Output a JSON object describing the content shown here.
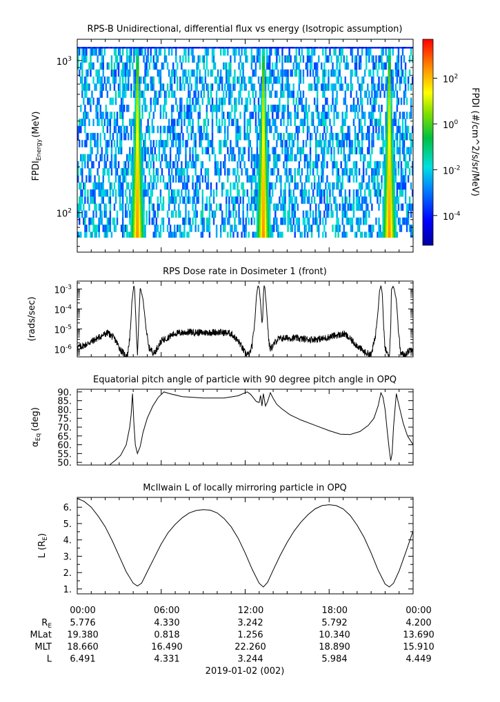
{
  "chart_data": [
    {
      "type": "heatmap",
      "title": "RPS-B  Unidirectional, differential flux vs energy (Isotropic assumption)",
      "ylabel": "FPDI",
      "ylabel_sub": "Energy",
      "ylabel_unit": "(MeV)",
      "y_scale": "log",
      "ylim": [
        55,
        1380
      ],
      "y_ticks": [
        {
          "value": 100,
          "label": "10",
          "exp": "2"
        },
        {
          "value": 1000,
          "label": "10",
          "exp": "3"
        }
      ],
      "x_hours": [
        0,
        24
      ],
      "energy_bands_mev": [
        58,
        64,
        71,
        79,
        88,
        98,
        109,
        121,
        135,
        150,
        167,
        186,
        207,
        230,
        256,
        285,
        317,
        353,
        393,
        437,
        486,
        541,
        602,
        670,
        745,
        829,
        922,
        1026,
        1141,
        1270
      ],
      "flux_peaks_hours": [
        4.3,
        13.3,
        22.3
      ],
      "colorbar": {
        "label": "FPDI (#/cm^2/s/sr/MeV)",
        "log_range": [
          -5.3,
          3.7
        ],
        "ticks": [
          {
            "label": "10",
            "exp": "2",
            "log": 2
          },
          {
            "label": "10",
            "exp": "0",
            "log": 0
          },
          {
            "label": "10",
            "exp": "-2",
            "log": -2
          },
          {
            "label": "10",
            "exp": "-4",
            "log": -4
          }
        ]
      }
    },
    {
      "type": "line",
      "title": "RPS  Dose rate in Dosimeter 1 (front)",
      "ylabel": "(rads/sec)",
      "y_scale": "log",
      "ylim": [
        4e-07,
        0.0025
      ],
      "y_ticks": [
        {
          "value": 0.001,
          "label": "10",
          "exp": "-3"
        },
        {
          "value": 0.0001,
          "label": "10",
          "exp": "-4"
        },
        {
          "value": 1e-05,
          "label": "10",
          "exp": "-5"
        },
        {
          "value": 1e-06,
          "label": "10",
          "exp": "-6"
        }
      ],
      "series": [
        {
          "x": [
            0,
            0.5,
            1,
            1.6,
            2.2,
            2.7,
            3.1,
            3.4,
            3.6,
            3.8,
            3.9,
            4.0,
            4.05,
            4.1,
            4.2,
            4.3,
            4.35,
            4.4,
            4.5,
            4.7,
            4.9,
            5.1,
            5.5,
            6,
            7,
            8,
            9,
            10,
            11,
            11.6,
            12,
            12.3,
            12.5,
            12.7,
            12.8,
            12.9,
            13.0,
            13.1,
            13.2,
            13.25,
            13.3,
            13.35,
            13.4,
            13.5,
            13.6,
            13.7,
            13.8,
            14.0,
            14.3,
            14.8,
            15.5,
            16.5,
            17.5,
            18.3,
            19.1,
            19.8,
            20.5,
            21.0,
            21.3,
            21.5,
            21.6,
            21.7,
            21.8,
            21.9,
            22.0,
            22.2,
            22.3,
            22.4,
            22.45,
            22.6,
            22.8,
            22.95,
            23.1,
            23.4,
            23.7,
            24
          ],
          "values": [
            1.2e-06,
            1.5e-06,
            2.3e-06,
            4e-06,
            6.5e-06,
            3e-06,
            9e-07,
            5e-07,
            5e-07,
            8e-06,
            0.0002,
            0.0009,
            0.0015,
            0.0009,
            2e-05,
            4e-07,
            4e-06,
            3e-05,
            0.0012,
            0.0003,
            1.5e-05,
            1.2e-06,
            6e-07,
            2.5e-06,
            6e-06,
            7e-06,
            6.5e-06,
            7e-06,
            6e-06,
            2e-06,
            6e-07,
            5e-07,
            1.5e-06,
            3e-05,
            0.0004,
            0.0014,
            0.0012,
            0.0002,
            2e-05,
            3e-05,
            0.0005,
            0.0015,
            0.0013,
            0.0002,
            2e-05,
            2e-06,
            1e-06,
            1.5e-06,
            3e-06,
            3.5e-06,
            3.5e-06,
            3e-06,
            3.2e-06,
            4.5e-06,
            5.5e-06,
            2e-06,
            7e-07,
            5e-07,
            4e-06,
            9e-05,
            0.0008,
            0.0015,
            0.0006,
            1e-05,
            1e-06,
            5e-07,
            4e-07,
            1e-05,
            0.001,
            0.0014,
            0.0003,
            1e-05,
            6e-07,
            5e-07,
            8e-07,
            1.2e-06
          ]
        }
      ]
    },
    {
      "type": "line",
      "title": "Equatorial pitch angle of particle with 90 degree pitch angle in OPQ",
      "ylabel": "α",
      "ylabel_sub": "Eq",
      "ylabel_unit": "(deg)",
      "ylim": [
        48.5,
        91.5
      ],
      "y_ticks": [
        90,
        85,
        80,
        75,
        70,
        65,
        60,
        55,
        50
      ],
      "y_tick_labels": [
        "90.",
        "85.",
        "80.",
        "75.",
        "70.",
        "65.",
        "60.",
        "55.",
        "50."
      ],
      "series": [
        {
          "x": [
            2.3,
            2.7,
            3.1,
            3.5,
            3.75,
            3.85,
            3.95,
            4.05,
            4.15,
            4.3,
            4.5,
            4.7,
            5.0,
            5.4,
            5.8,
            6.2,
            6.6,
            7.5,
            9,
            10.5,
            11.5,
            12.15,
            12.4,
            12.8,
            13.0,
            13.1,
            13.2,
            13.3,
            13.45,
            13.6,
            13.8,
            14.0,
            14.25,
            14.6,
            15.2,
            16,
            17,
            18,
            18.8,
            19.5,
            20.2,
            20.8,
            21.2,
            21.5,
            21.7,
            21.85,
            22.0,
            22.15,
            22.3,
            22.4,
            22.5,
            22.6,
            22.8,
            23.0,
            23.3,
            23.6,
            24.0
          ],
          "values": [
            48.5,
            51,
            54,
            60,
            70,
            77,
            89,
            72,
            60,
            55,
            59,
            67,
            75,
            82,
            87,
            90,
            89,
            87.3,
            86.5,
            86.5,
            87.8,
            90,
            88.5,
            84.5,
            84,
            88,
            82,
            89,
            82,
            84.5,
            89.5,
            86.3,
            83,
            80.5,
            77,
            74,
            71,
            68,
            66,
            65.8,
            67.5,
            71,
            75,
            82,
            89.5,
            87,
            80,
            68,
            57,
            51,
            55,
            70,
            89,
            82,
            72,
            65,
            60
          ]
        }
      ]
    },
    {
      "type": "line",
      "title": "McIlwain L of locally mirroring particle in OPQ",
      "ylabel": "L (R",
      "ylabel_sub": "E",
      "ylabel_unit": ")",
      "ylim": [
        0.7,
        6.6
      ],
      "y_ticks": [
        1,
        2,
        3,
        4,
        5,
        6
      ],
      "y_tick_labels": [
        "1.",
        "2.",
        "3.",
        "4.",
        "5.",
        "6."
      ],
      "series": [
        {
          "x": [
            0,
            0.5,
            1,
            1.5,
            2,
            2.5,
            3,
            3.5,
            4,
            4.3,
            4.6,
            5,
            5.5,
            6,
            6.5,
            7,
            7.5,
            8,
            8.5,
            9,
            9.5,
            10,
            10.5,
            11,
            11.5,
            12,
            12.5,
            13,
            13.3,
            13.6,
            14,
            14.5,
            15,
            15.5,
            16,
            16.5,
            17,
            17.5,
            18,
            18.5,
            19,
            19.5,
            20,
            20.5,
            21,
            21.5,
            22,
            22.3,
            22.6,
            23,
            23.5,
            24
          ],
          "values": [
            6.55,
            6.35,
            6.0,
            5.45,
            4.8,
            3.95,
            3.0,
            2.05,
            1.35,
            1.18,
            1.35,
            2.05,
            2.9,
            3.75,
            4.45,
            4.95,
            5.35,
            5.65,
            5.8,
            5.85,
            5.82,
            5.65,
            5.3,
            4.8,
            4.1,
            3.2,
            2.2,
            1.35,
            1.12,
            1.4,
            2.15,
            3.05,
            3.85,
            4.55,
            5.1,
            5.55,
            5.9,
            6.1,
            6.15,
            6.1,
            5.9,
            5.5,
            4.9,
            4.15,
            3.2,
            2.15,
            1.3,
            1.12,
            1.35,
            2.1,
            3.3,
            4.55
          ]
        }
      ]
    }
  ],
  "x_axis": {
    "tick_labels": [
      "00:00",
      "06:00",
      "12:00",
      "18:00",
      "00:00"
    ],
    "tick_hours": [
      0,
      6,
      12,
      18,
      24
    ]
  },
  "ephemeris": {
    "rows": [
      {
        "label": "R",
        "sub": "E",
        "values": [
          "5.776",
          "4.330",
          "3.242",
          "5.792",
          "4.200"
        ]
      },
      {
        "label": "MLat",
        "sub": "",
        "values": [
          "19.380",
          "0.818",
          "1.256",
          "10.340",
          "13.690"
        ]
      },
      {
        "label": "MLT",
        "sub": "",
        "values": [
          "18.660",
          "16.490",
          "22.260",
          "18.890",
          "15.910"
        ]
      },
      {
        "label": "L",
        "sub": "",
        "values": [
          "6.491",
          "4.331",
          "3.244",
          "5.984",
          "4.449"
        ]
      }
    ]
  },
  "date_label": "2019-01-02 (002)"
}
